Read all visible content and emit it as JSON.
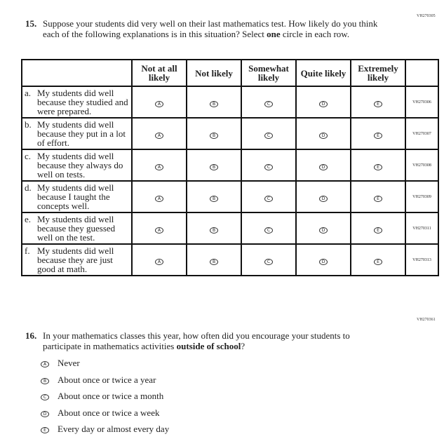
{
  "q15": {
    "code": "VH270305",
    "number": "15.",
    "text_before": "Suppose your students did very well on their last mathematics test. How likely do you think each of the following explanations is in this situation? Select ",
    "bold": "one",
    "text_after": " circle in each row.",
    "columns": [
      "Not at all likely",
      "Not likely",
      "Somewhat likely",
      "Quite likely",
      "Extremely likely"
    ],
    "bubbles": [
      "A",
      "B",
      "C",
      "D",
      "E"
    ],
    "rows": [
      {
        "letter": "a.",
        "text": "My students did well because they studied and were prepared.",
        "code": "VH270306"
      },
      {
        "letter": "b.",
        "text": "My students did well because they put in a lot of effort.",
        "code": "VH270307"
      },
      {
        "letter": "c.",
        "text": "My students did well because they always do well on tests.",
        "code": "VH270308"
      },
      {
        "letter": "d.",
        "text": "My students did well because I taught the concepts well.",
        "code": "VH270309"
      },
      {
        "letter": "e.",
        "text": "My students did well because they guessed well on the test.",
        "code": "VH270311"
      },
      {
        "letter": "f.",
        "text": "My students did well because they are just good at math.",
        "code": "VH270313"
      }
    ]
  },
  "q16": {
    "code": "VH270361",
    "number": "16.",
    "text_before": "In your mathematics classes this year, how often did you encourage your students to participate in mathematics activities ",
    "bold": "outside of school",
    "text_after": "?",
    "options": [
      {
        "bubble": "A",
        "label": "Never"
      },
      {
        "bubble": "B",
        "label": "About once or twice a year"
      },
      {
        "bubble": "C",
        "label": "About once or twice a month"
      },
      {
        "bubble": "D",
        "label": "About once or twice a week"
      },
      {
        "bubble": "E",
        "label": "Every day or almost every day"
      }
    ]
  }
}
